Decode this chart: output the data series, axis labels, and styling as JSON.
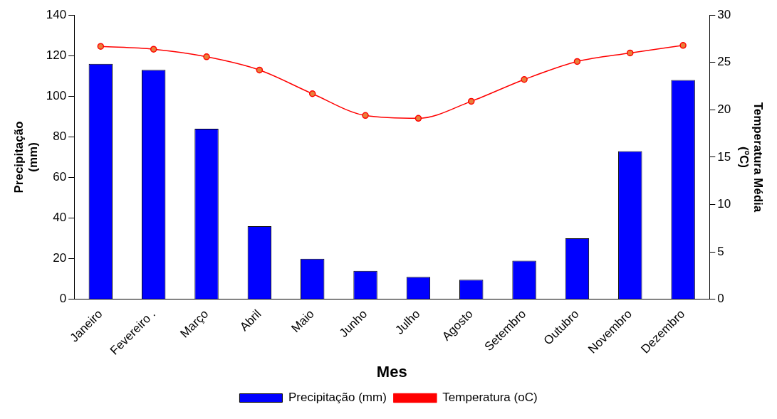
{
  "chart_data": {
    "type": "bar",
    "xlabel": "Mes",
    "ylabel": "Precipitação\n(mm)",
    "y2label": "Temperatura Média\n(ºC)",
    "categories": [
      "Janeiro",
      "Fevereiro .",
      "Março",
      "Abril",
      "Maio",
      "Junho",
      "Julho",
      "Agosto",
      "Setembro",
      "Outubro",
      "Novembro",
      "Dezembro"
    ],
    "series": [
      {
        "name": "Precipitação (mm)",
        "color": "#0000ff",
        "values": [
          116,
          113,
          84,
          36,
          20,
          14,
          11,
          9.6,
          19,
          30,
          73,
          108
        ]
      },
      {
        "name": "Temperatura (oC)",
        "type": "line",
        "axis": "y2",
        "color": "#ff0000",
        "marker": "circle",
        "values": [
          26.7,
          26.4,
          25.6,
          24.2,
          21.7,
          19.4,
          19.1,
          20.9,
          23.2,
          25.1,
          26.0,
          26.8
        ]
      }
    ],
    "ylim": [
      0,
      140
    ],
    "yticks": [
      0,
      20,
      40,
      60,
      80,
      100,
      120,
      140
    ],
    "y2lim": [
      0,
      30
    ],
    "y2ticks": [
      0,
      5,
      10,
      15,
      20,
      25,
      30
    ],
    "grid": false,
    "legend": "bottom"
  }
}
